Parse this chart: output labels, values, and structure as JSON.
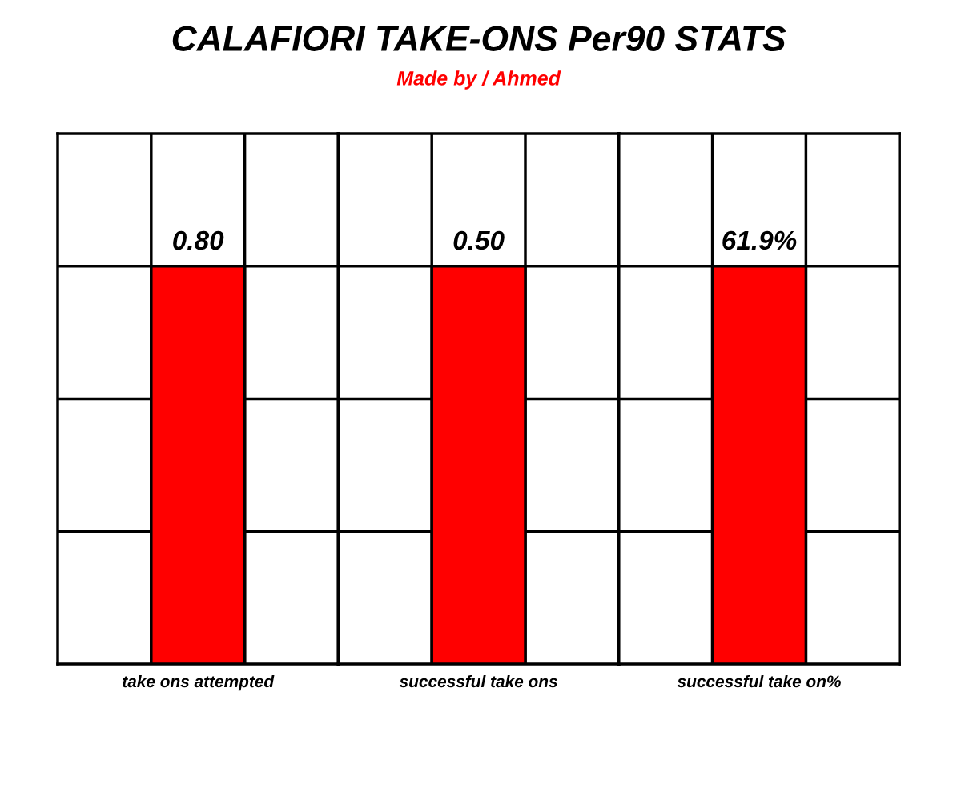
{
  "chart_data": [
    {
      "type": "bar",
      "categories": [
        "take ons attempted"
      ],
      "values": [
        0.8
      ],
      "value_labels": [
        "0.80"
      ],
      "color": "#ff0000",
      "grid": true,
      "tick_labels": "x",
      "ylim": [
        0,
        1.0667
      ],
      "yticks": [
        {
          "value": 0.2667,
          "label": null
        },
        {
          "value": 0.5333,
          "label": null
        },
        {
          "value": 0.8,
          "label": null
        }
      ]
    },
    {
      "type": "bar",
      "title": "CALAFIORI TAKE-ONS Per90 STATS",
      "subtitle": "Made by / Ahmed",
      "categories": [
        "successful take ons"
      ],
      "values": [
        0.5
      ],
      "value_labels": [
        "0.50"
      ],
      "color": "#ff0000",
      "grid": true,
      "tick_labels": "x",
      "ylim": [
        0,
        0.6667
      ],
      "yticks": [
        {
          "value": 0.1667,
          "label": null
        },
        {
          "value": 0.3333,
          "label": null
        },
        {
          "value": 0.5,
          "label": null
        }
      ]
    },
    {
      "type": "bar",
      "categories": [
        "successful take on%"
      ],
      "values": [
        61.9
      ],
      "value_labels": [
        "61.9%"
      ],
      "color": "#ff0000",
      "grid": true,
      "tick_labels": "x",
      "ylim": [
        0,
        82.53
      ],
      "yticks": [
        {
          "value": 20.63,
          "label": null
        },
        {
          "value": 41.27,
          "label": null
        },
        {
          "value": 61.9,
          "label": null
        }
      ]
    }
  ]
}
